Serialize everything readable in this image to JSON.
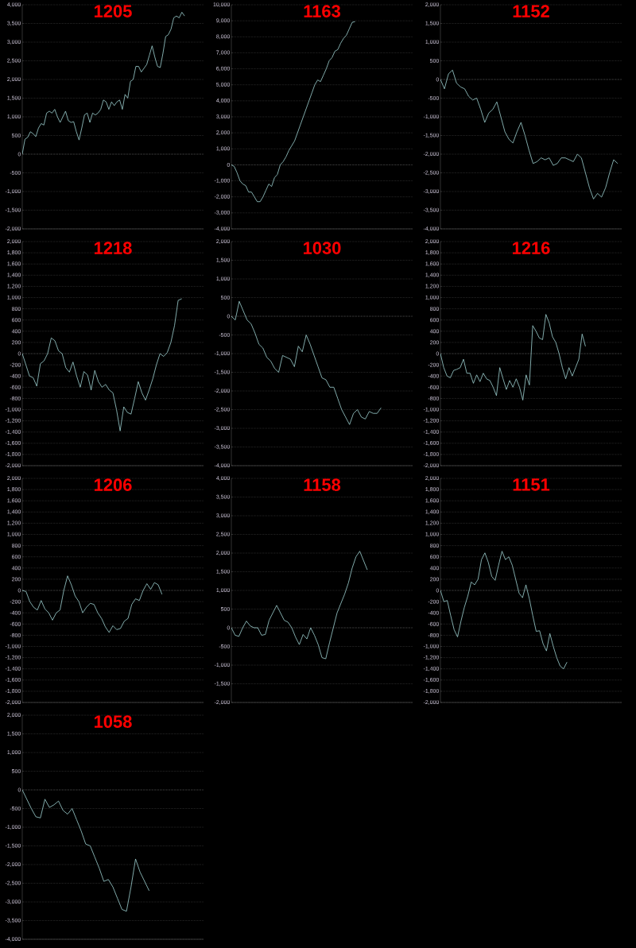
{
  "chart_data": [
    {
      "type": "line",
      "title": "1205",
      "color": "#9fd3d3",
      "grid": "y",
      "tick_labels": "y",
      "ref_lines": [
        {
          "axis": "y",
          "value": 0
        }
      ],
      "categories": [
        null,
        null,
        null,
        null,
        null,
        null,
        null,
        null,
        null,
        null,
        null,
        null,
        null,
        null,
        null,
        null,
        null,
        null,
        null,
        null,
        null,
        null,
        null,
        null,
        null,
        null,
        null,
        null,
        null,
        null,
        null,
        null,
        null,
        null,
        null,
        null,
        null,
        null,
        null,
        null,
        null,
        null,
        null,
        null,
        null,
        null,
        null,
        null,
        null,
        null,
        null,
        null,
        null,
        null,
        null,
        null,
        null,
        null,
        null,
        null,
        null,
        null,
        null,
        null,
        null,
        null,
        null,
        null
      ],
      "values": [
        0,
        400,
        450,
        600,
        550,
        470,
        700,
        820,
        780,
        1100,
        1150,
        1100,
        1200,
        1000,
        850,
        1000,
        1150,
        900,
        850,
        870,
        600,
        380,
        700,
        1050,
        1100,
        850,
        1100,
        1050,
        1100,
        1200,
        1450,
        1400,
        1200,
        1400,
        1300,
        1400,
        1450,
        1200,
        1600,
        1500,
        1950,
        2000,
        2350,
        2350,
        2200,
        2300,
        2400,
        2650,
        2900,
        2600,
        2350,
        2320,
        2700,
        3150,
        3200,
        3350,
        3650,
        3700,
        3650,
        3800,
        3700,
        null,
        null,
        null,
        null,
        null,
        null,
        null
      ],
      "ylim": [
        -2000,
        4000
      ],
      "yticks": [
        {
          "value": -2000,
          "label": "-2,000"
        },
        {
          "value": -1500,
          "label": "-1,500"
        },
        {
          "value": -1000,
          "label": "-1,000"
        },
        -500,
        0,
        500,
        {
          "value": 1000,
          "label": "1,000"
        },
        {
          "value": 1500,
          "label": "1,500"
        },
        {
          "value": 2000,
          "label": "2,000"
        },
        {
          "value": 2500,
          "label": "2,500"
        },
        {
          "value": 3000,
          "label": "3,000"
        },
        {
          "value": 3500,
          "label": "3,500"
        },
        {
          "value": 4000,
          "label": "4,000"
        }
      ]
    },
    {
      "type": "line",
      "title": "1163",
      "color": "#9fd3d3",
      "grid": "y",
      "tick_labels": "y",
      "ref_lines": [
        {
          "axis": "y",
          "value": 0
        }
      ],
      "categories": [
        null,
        null,
        null,
        null,
        null,
        null,
        null,
        null,
        null,
        null,
        null,
        null,
        null,
        null,
        null,
        null,
        null,
        null,
        null,
        null,
        null,
        null,
        null,
        null,
        null,
        null,
        null,
        null,
        null,
        null,
        null,
        null,
        null,
        null,
        null,
        null,
        null,
        null,
        null,
        null,
        null,
        null,
        null,
        null,
        null,
        null,
        null,
        null,
        null,
        null,
        null,
        null,
        null,
        null,
        null,
        null,
        null,
        null,
        null,
        null,
        null,
        null,
        null,
        null
      ],
      "values": [
        0,
        -100,
        -500,
        -1000,
        -1200,
        -1300,
        -1700,
        -1700,
        -2000,
        -2300,
        -2300,
        -2000,
        -1600,
        -1200,
        -1350,
        -800,
        -600,
        0,
        200,
        500,
        900,
        1200,
        1500,
        2000,
        2500,
        3000,
        3500,
        4000,
        4500,
        5000,
        5300,
        5200,
        5600,
        6000,
        6500,
        6700,
        7100,
        7200,
        7600,
        7900,
        8100,
        8500,
        8900,
        8950,
        null,
        null,
        null,
        null,
        null,
        null,
        null,
        null,
        null,
        null,
        null,
        null,
        null,
        null,
        null,
        null,
        null,
        null,
        null,
        null
      ],
      "ylim": [
        -4000,
        10000
      ],
      "yticks": [
        {
          "value": -4000,
          "label": "-4,000"
        },
        {
          "value": -3000,
          "label": "-3,000"
        },
        {
          "value": -2000,
          "label": "-2,000"
        },
        {
          "value": -1000,
          "label": "-1,000"
        },
        0,
        {
          "value": 1000,
          "label": "1,000"
        },
        {
          "value": 2000,
          "label": "2,000"
        },
        {
          "value": 3000,
          "label": "3,000"
        },
        {
          "value": 4000,
          "label": "4,000"
        },
        {
          "value": 5000,
          "label": "5,000"
        },
        {
          "value": 6000,
          "label": "6,000"
        },
        {
          "value": 7000,
          "label": "7,000"
        },
        {
          "value": 8000,
          "label": "8,000"
        },
        {
          "value": 9000,
          "label": "9,000"
        },
        {
          "value": 10000,
          "label": "10,000"
        }
      ]
    },
    {
      "type": "line",
      "title": "1152",
      "color": "#9fd3d3",
      "grid": "y",
      "tick_labels": "y",
      "ref_lines": [
        {
          "axis": "y",
          "value": 0
        }
      ],
      "categories": [
        null,
        null,
        null,
        null,
        null,
        null,
        null,
        null,
        null,
        null,
        null,
        null,
        null,
        null,
        null,
        null,
        null,
        null,
        null,
        null,
        null,
        null,
        null,
        null,
        null,
        null,
        null,
        null,
        null,
        null,
        null,
        null,
        null,
        null,
        null,
        null,
        null,
        null,
        null,
        null,
        null,
        null,
        null,
        null,
        null,
        null
      ],
      "values": [
        0,
        -250,
        150,
        250,
        -100,
        -200,
        -250,
        -450,
        -550,
        -500,
        -800,
        -1150,
        -900,
        -800,
        -600,
        -1000,
        -1400,
        -1600,
        -1700,
        -1400,
        -1150,
        -1500,
        -1900,
        -2250,
        -2200,
        -2100,
        -2150,
        -2100,
        -2300,
        -2250,
        -2100,
        -2100,
        -2150,
        -2200,
        -2000,
        -2100,
        -2500,
        -2900,
        -3200,
        -3050,
        -3150,
        -2900,
        -2500,
        -2150,
        -2250,
        null
      ],
      "ylim": [
        -4000,
        2000
      ],
      "yticks": [
        {
          "value": -4000,
          "label": "-4,000"
        },
        {
          "value": -3500,
          "label": "-3,500"
        },
        {
          "value": -3000,
          "label": "-3,000"
        },
        {
          "value": -2500,
          "label": "-2,500"
        },
        {
          "value": -2000,
          "label": "-2,000"
        },
        {
          "value": -1500,
          "label": "-1,500"
        },
        {
          "value": -1000,
          "label": "-1,000"
        },
        -500,
        0,
        500,
        {
          "value": 1000,
          "label": "1,000"
        },
        {
          "value": 1500,
          "label": "1,500"
        },
        {
          "value": 2000,
          "label": "2,000"
        }
      ]
    },
    {
      "type": "line",
      "title": "1218",
      "color": "#9fd3d3",
      "grid": "y",
      "tick_labels": "y",
      "ref_lines": [
        {
          "axis": "y",
          "value": 0
        }
      ],
      "categories": [
        null,
        null,
        null,
        null,
        null,
        null,
        null,
        null,
        null,
        null,
        null,
        null,
        null,
        null,
        null,
        null,
        null,
        null,
        null,
        null,
        null,
        null,
        null,
        null,
        null,
        null,
        null,
        null,
        null,
        null,
        null,
        null,
        null,
        null,
        null,
        null,
        null,
        null,
        null,
        null,
        null,
        null,
        null,
        null,
        null,
        null,
        null,
        null,
        null,
        null,
        null
      ],
      "values": [
        0,
        -200,
        -400,
        -430,
        -580,
        -180,
        -130,
        0,
        280,
        230,
        50,
        0,
        -250,
        -330,
        -150,
        -400,
        -600,
        -320,
        -380,
        -650,
        -300,
        -500,
        -600,
        -550,
        -650,
        -700,
        -1000,
        -1380,
        -950,
        -1050,
        -1080,
        -800,
        -500,
        -700,
        -830,
        -650,
        -450,
        -200,
        0,
        -50,
        20,
        200,
        500,
        950,
        980,
        null,
        null,
        null,
        null,
        null,
        null
      ],
      "ylim": [
        -2000,
        2000
      ],
      "yticks": [
        {
          "value": -2000,
          "label": "-2,000"
        },
        {
          "value": -1800,
          "label": "-1,800"
        },
        {
          "value": -1600,
          "label": "-1,600"
        },
        {
          "value": -1400,
          "label": "-1,400"
        },
        {
          "value": -1200,
          "label": "-1,200"
        },
        {
          "value": -1000,
          "label": "-1,000"
        },
        -800,
        -600,
        -400,
        -200,
        0,
        200,
        400,
        600,
        800,
        {
          "value": 1000,
          "label": "1,000"
        },
        {
          "value": 1200,
          "label": "1,200"
        },
        {
          "value": 1400,
          "label": "1,400"
        },
        {
          "value": 1600,
          "label": "1,600"
        },
        {
          "value": 1800,
          "label": "1,800"
        },
        {
          "value": 2000,
          "label": "2,000"
        }
      ]
    },
    {
      "type": "line",
      "title": "1030",
      "color": "#9fd3d3",
      "grid": "y",
      "tick_labels": "y",
      "ref_lines": [
        {
          "axis": "y",
          "value": 0
        }
      ],
      "categories": [
        null,
        null,
        null,
        null,
        null,
        null,
        null,
        null,
        null,
        null,
        null,
        null,
        null,
        null,
        null,
        null,
        null,
        null,
        null,
        null,
        null,
        null,
        null,
        null,
        null,
        null,
        null,
        null,
        null,
        null,
        null,
        null,
        null,
        null,
        null,
        null,
        null,
        null,
        null,
        null,
        null,
        null,
        null,
        null,
        null,
        null,
        null
      ],
      "values": [
        0,
        -100,
        400,
        150,
        -100,
        -200,
        -450,
        -750,
        -850,
        -1100,
        -1200,
        -1400,
        -1500,
        -1050,
        -1100,
        -1150,
        -1350,
        -800,
        -950,
        -500,
        -750,
        -1050,
        -1350,
        -1650,
        -1700,
        -1900,
        -1900,
        -2200,
        -2500,
        -2700,
        -2900,
        -2600,
        -2500,
        -2700,
        -2750,
        -2550,
        -2600,
        -2600,
        -2450,
        null,
        null,
        null,
        null,
        null,
        null,
        null,
        null
      ],
      "ylim": [
        -4000,
        2000
      ],
      "yticks": [
        {
          "value": -4000,
          "label": "-4,000"
        },
        {
          "value": -3500,
          "label": "-3,500"
        },
        {
          "value": -3000,
          "label": "-3,000"
        },
        {
          "value": -2500,
          "label": "-2,500"
        },
        {
          "value": -2000,
          "label": "-2,000"
        },
        {
          "value": -1500,
          "label": "-1,500"
        },
        {
          "value": -1000,
          "label": "-1,000"
        },
        -500,
        0,
        500,
        {
          "value": 1000,
          "label": "1,000"
        },
        {
          "value": 1500,
          "label": "1,500"
        },
        {
          "value": 2000,
          "label": "2,000"
        }
      ]
    },
    {
      "type": "line",
      "title": "1216",
      "color": "#9fd3d3",
      "grid": "y",
      "tick_labels": "y",
      "ref_lines": [
        {
          "axis": "y",
          "value": 0
        }
      ],
      "categories": [
        null,
        null,
        null,
        null,
        null,
        null,
        null,
        null,
        null,
        null,
        null,
        null,
        null,
        null,
        null,
        null,
        null,
        null,
        null,
        null,
        null,
        null,
        null,
        null,
        null,
        null,
        null,
        null,
        null,
        null,
        null,
        null,
        null,
        null,
        null,
        null,
        null,
        null,
        null,
        null,
        null,
        null,
        null,
        null,
        null,
        null,
        null,
        null,
        null,
        null,
        null,
        null,
        null,
        null,
        null,
        null
      ],
      "values": [
        0,
        -250,
        -400,
        -430,
        -300,
        -280,
        -250,
        -100,
        -350,
        -350,
        -530,
        -380,
        -500,
        -350,
        -450,
        -480,
        -600,
        -750,
        -250,
        -450,
        -640,
        -480,
        -600,
        -450,
        -600,
        -830,
        -380,
        -560,
        500,
        400,
        280,
        250,
        700,
        550,
        300,
        200,
        0,
        -250,
        -450,
        -250,
        -400,
        -250,
        -100,
        350,
        130,
        null,
        null,
        null,
        null,
        null,
        null,
        null,
        null,
        null,
        null,
        null
      ],
      "ylim": [
        -2000,
        2000
      ],
      "yticks": [
        {
          "value": -2000,
          "label": "-2,000"
        },
        {
          "value": -1800,
          "label": "-1,800"
        },
        {
          "value": -1600,
          "label": "-1,600"
        },
        {
          "value": -1400,
          "label": "-1,400"
        },
        {
          "value": -1200,
          "label": "-1,200"
        },
        {
          "value": -1000,
          "label": "-1,000"
        },
        -800,
        -600,
        -400,
        -200,
        0,
        200,
        400,
        600,
        800,
        {
          "value": 1000,
          "label": "1,000"
        },
        {
          "value": 1200,
          "label": "1,200"
        },
        {
          "value": 1400,
          "label": "1,400"
        },
        {
          "value": 1600,
          "label": "1,600"
        },
        {
          "value": 1800,
          "label": "1,800"
        },
        {
          "value": 2000,
          "label": "2,000"
        }
      ]
    },
    {
      "type": "line",
      "title": "1206",
      "color": "#9fd3d3",
      "grid": "y",
      "tick_labels": "y",
      "ref_lines": [
        {
          "axis": "y",
          "value": 0
        }
      ],
      "categories": [
        null,
        null,
        null,
        null,
        null,
        null,
        null,
        null,
        null,
        null,
        null,
        null,
        null,
        null,
        null,
        null,
        null,
        null,
        null,
        null,
        null,
        null,
        null,
        null,
        null,
        null,
        null,
        null,
        null,
        null,
        null,
        null,
        null,
        null,
        null,
        null,
        null,
        null,
        null,
        null,
        null,
        null,
        null,
        null,
        null,
        null,
        null,
        null,
        null
      ],
      "values": [
        0,
        -20,
        -200,
        -300,
        -350,
        -180,
        -330,
        -400,
        -530,
        -400,
        -350,
        0,
        260,
        100,
        -100,
        -200,
        -400,
        -300,
        -230,
        -250,
        -400,
        -500,
        -650,
        -750,
        -630,
        -700,
        -680,
        -550,
        -500,
        -250,
        -150,
        -180,
        0,
        120,
        20,
        140,
        100,
        -70,
        null,
        null,
        null,
        null,
        null,
        null,
        null,
        null,
        null,
        null,
        null
      ],
      "ylim": [
        -2000,
        2000
      ],
      "yticks": [
        {
          "value": -2000,
          "label": "-2,000"
        },
        {
          "value": -1800,
          "label": "-1,800"
        },
        {
          "value": -1600,
          "label": "-1,600"
        },
        {
          "value": -1400,
          "label": "-1,400"
        },
        {
          "value": -1200,
          "label": "-1,200"
        },
        {
          "value": -1000,
          "label": "-1,000"
        },
        -800,
        -600,
        -400,
        -200,
        0,
        200,
        400,
        600,
        800,
        {
          "value": 1000,
          "label": "1,000"
        },
        {
          "value": 1200,
          "label": "1,200"
        },
        {
          "value": 1400,
          "label": "1,400"
        },
        {
          "value": 1600,
          "label": "1,600"
        },
        {
          "value": 1800,
          "label": "1,800"
        },
        {
          "value": 2000,
          "label": "2,000"
        }
      ]
    },
    {
      "type": "line",
      "title": "1158",
      "color": "#9fd3d3",
      "grid": "y",
      "tick_labels": "y",
      "ref_lines": [
        {
          "axis": "y",
          "value": 0
        }
      ],
      "categories": [
        null,
        null,
        null,
        null,
        null,
        null,
        null,
        null,
        null,
        null,
        null,
        null,
        null,
        null,
        null,
        null,
        null,
        null,
        null,
        null,
        null,
        null,
        null,
        null,
        null,
        null,
        null,
        null,
        null,
        null,
        null,
        null,
        null,
        null,
        null,
        null,
        null,
        null,
        null,
        null,
        null,
        null,
        null,
        null,
        null,
        null,
        null,
        null,
        null
      ],
      "values": [
        0,
        -200,
        -230,
        0,
        180,
        50,
        0,
        0,
        -200,
        -180,
        200,
        400,
        600,
        400,
        200,
        150,
        0,
        -250,
        -450,
        -180,
        -300,
        0,
        -200,
        -450,
        -800,
        -830,
        -400,
        0,
        400,
        650,
        900,
        1200,
        1600,
        1900,
        2050,
        1800,
        1550,
        null,
        null,
        null,
        null,
        null,
        null,
        null,
        null,
        null,
        null,
        null,
        null
      ],
      "ylim": [
        -2000,
        4000
      ],
      "yticks": [
        {
          "value": -2000,
          "label": "-2,000"
        },
        {
          "value": -1500,
          "label": "-1,500"
        },
        {
          "value": -1000,
          "label": "-1,000"
        },
        -500,
        0,
        500,
        {
          "value": 1000,
          "label": "1,000"
        },
        {
          "value": 1500,
          "label": "1,500"
        },
        {
          "value": 2000,
          "label": "2,000"
        },
        {
          "value": 2500,
          "label": "2,500"
        },
        {
          "value": 3000,
          "label": "3,000"
        },
        {
          "value": 3500,
          "label": "3,500"
        },
        {
          "value": 4000,
          "label": "4,000"
        }
      ]
    },
    {
      "type": "line",
      "title": "1151",
      "color": "#9fd3d3",
      "grid": "y",
      "tick_labels": "y",
      "ref_lines": [
        {
          "axis": "y",
          "value": 0
        }
      ],
      "categories": [
        null,
        null,
        null,
        null,
        null,
        null,
        null,
        null,
        null,
        null,
        null,
        null,
        null,
        null,
        null,
        null,
        null,
        null,
        null,
        null,
        null,
        null,
        null,
        null,
        null,
        null,
        null,
        null,
        null,
        null,
        null,
        null,
        null,
        null,
        null,
        null,
        null,
        null,
        null,
        null,
        null,
        null,
        null,
        null,
        null,
        null,
        null,
        null,
        null,
        null,
        null,
        null,
        null,
        null
      ],
      "values": [
        0,
        -200,
        -180,
        -450,
        -700,
        -830,
        -550,
        -300,
        -100,
        150,
        100,
        200,
        550,
        670,
        500,
        250,
        180,
        450,
        700,
        550,
        600,
        450,
        200,
        -50,
        -130,
        100,
        -150,
        -450,
        -730,
        -720,
        -950,
        -1080,
        -770,
        -1000,
        -1200,
        -1350,
        -1400,
        -1280,
        null,
        null,
        null,
        null,
        null,
        null,
        null,
        null,
        null,
        null,
        null,
        null,
        null,
        null,
        null,
        null
      ],
      "ylim": [
        -2000,
        2000
      ],
      "yticks": [
        {
          "value": -2000,
          "label": "-2,000"
        },
        {
          "value": -1800,
          "label": "-1,800"
        },
        {
          "value": -1600,
          "label": "-1,600"
        },
        {
          "value": -1400,
          "label": "-1,400"
        },
        {
          "value": -1200,
          "label": "-1,200"
        },
        {
          "value": -1000,
          "label": "-1,000"
        },
        -800,
        -600,
        -400,
        -200,
        0,
        200,
        400,
        600,
        800,
        {
          "value": 1000,
          "label": "1,000"
        },
        {
          "value": 1200,
          "label": "1,200"
        },
        {
          "value": 1400,
          "label": "1,400"
        },
        {
          "value": 1600,
          "label": "1,600"
        },
        {
          "value": 1800,
          "label": "1,800"
        },
        {
          "value": 2000,
          "label": "2,000"
        }
      ]
    },
    {
      "type": "line",
      "title": "1058",
      "color": "#9fd3d3",
      "grid": "y",
      "tick_labels": "y",
      "ref_lines": [
        {
          "axis": "y",
          "value": 0
        }
      ],
      "categories": [
        null,
        null,
        null,
        null,
        null,
        null,
        null,
        null,
        null,
        null,
        null,
        null,
        null,
        null,
        null,
        null,
        null,
        null,
        null,
        null,
        null,
        null,
        null,
        null,
        null,
        null,
        null,
        null,
        null,
        null,
        null,
        null,
        null,
        null,
        null,
        null,
        null,
        null,
        null,
        null,
        null
      ],
      "values": [
        0,
        -250,
        -500,
        -720,
        -750,
        -250,
        -470,
        -400,
        -300,
        -550,
        -650,
        -500,
        -800,
        -1100,
        -1450,
        -1500,
        -1800,
        -2100,
        -2450,
        -2400,
        -2600,
        -2900,
        -3200,
        -3250,
        -2600,
        -1850,
        -2200,
        -2450,
        -2700,
        null,
        null,
        null,
        null,
        null,
        null,
        null,
        null,
        null,
        null,
        null,
        null
      ],
      "ylim": [
        -4000,
        2000
      ],
      "yticks": [
        {
          "value": -4000,
          "label": "-4,000"
        },
        {
          "value": -3500,
          "label": "-3,500"
        },
        {
          "value": -3000,
          "label": "-3,000"
        },
        {
          "value": -2500,
          "label": "-2,500"
        },
        {
          "value": -2000,
          "label": "-2,000"
        },
        {
          "value": -1500,
          "label": "-1,500"
        },
        {
          "value": -1000,
          "label": "-1,000"
        },
        -500,
        0,
        500,
        {
          "value": 1000,
          "label": "1,000"
        },
        {
          "value": 1500,
          "label": "1,500"
        },
        {
          "value": 2000,
          "label": "2,000"
        }
      ]
    }
  ]
}
